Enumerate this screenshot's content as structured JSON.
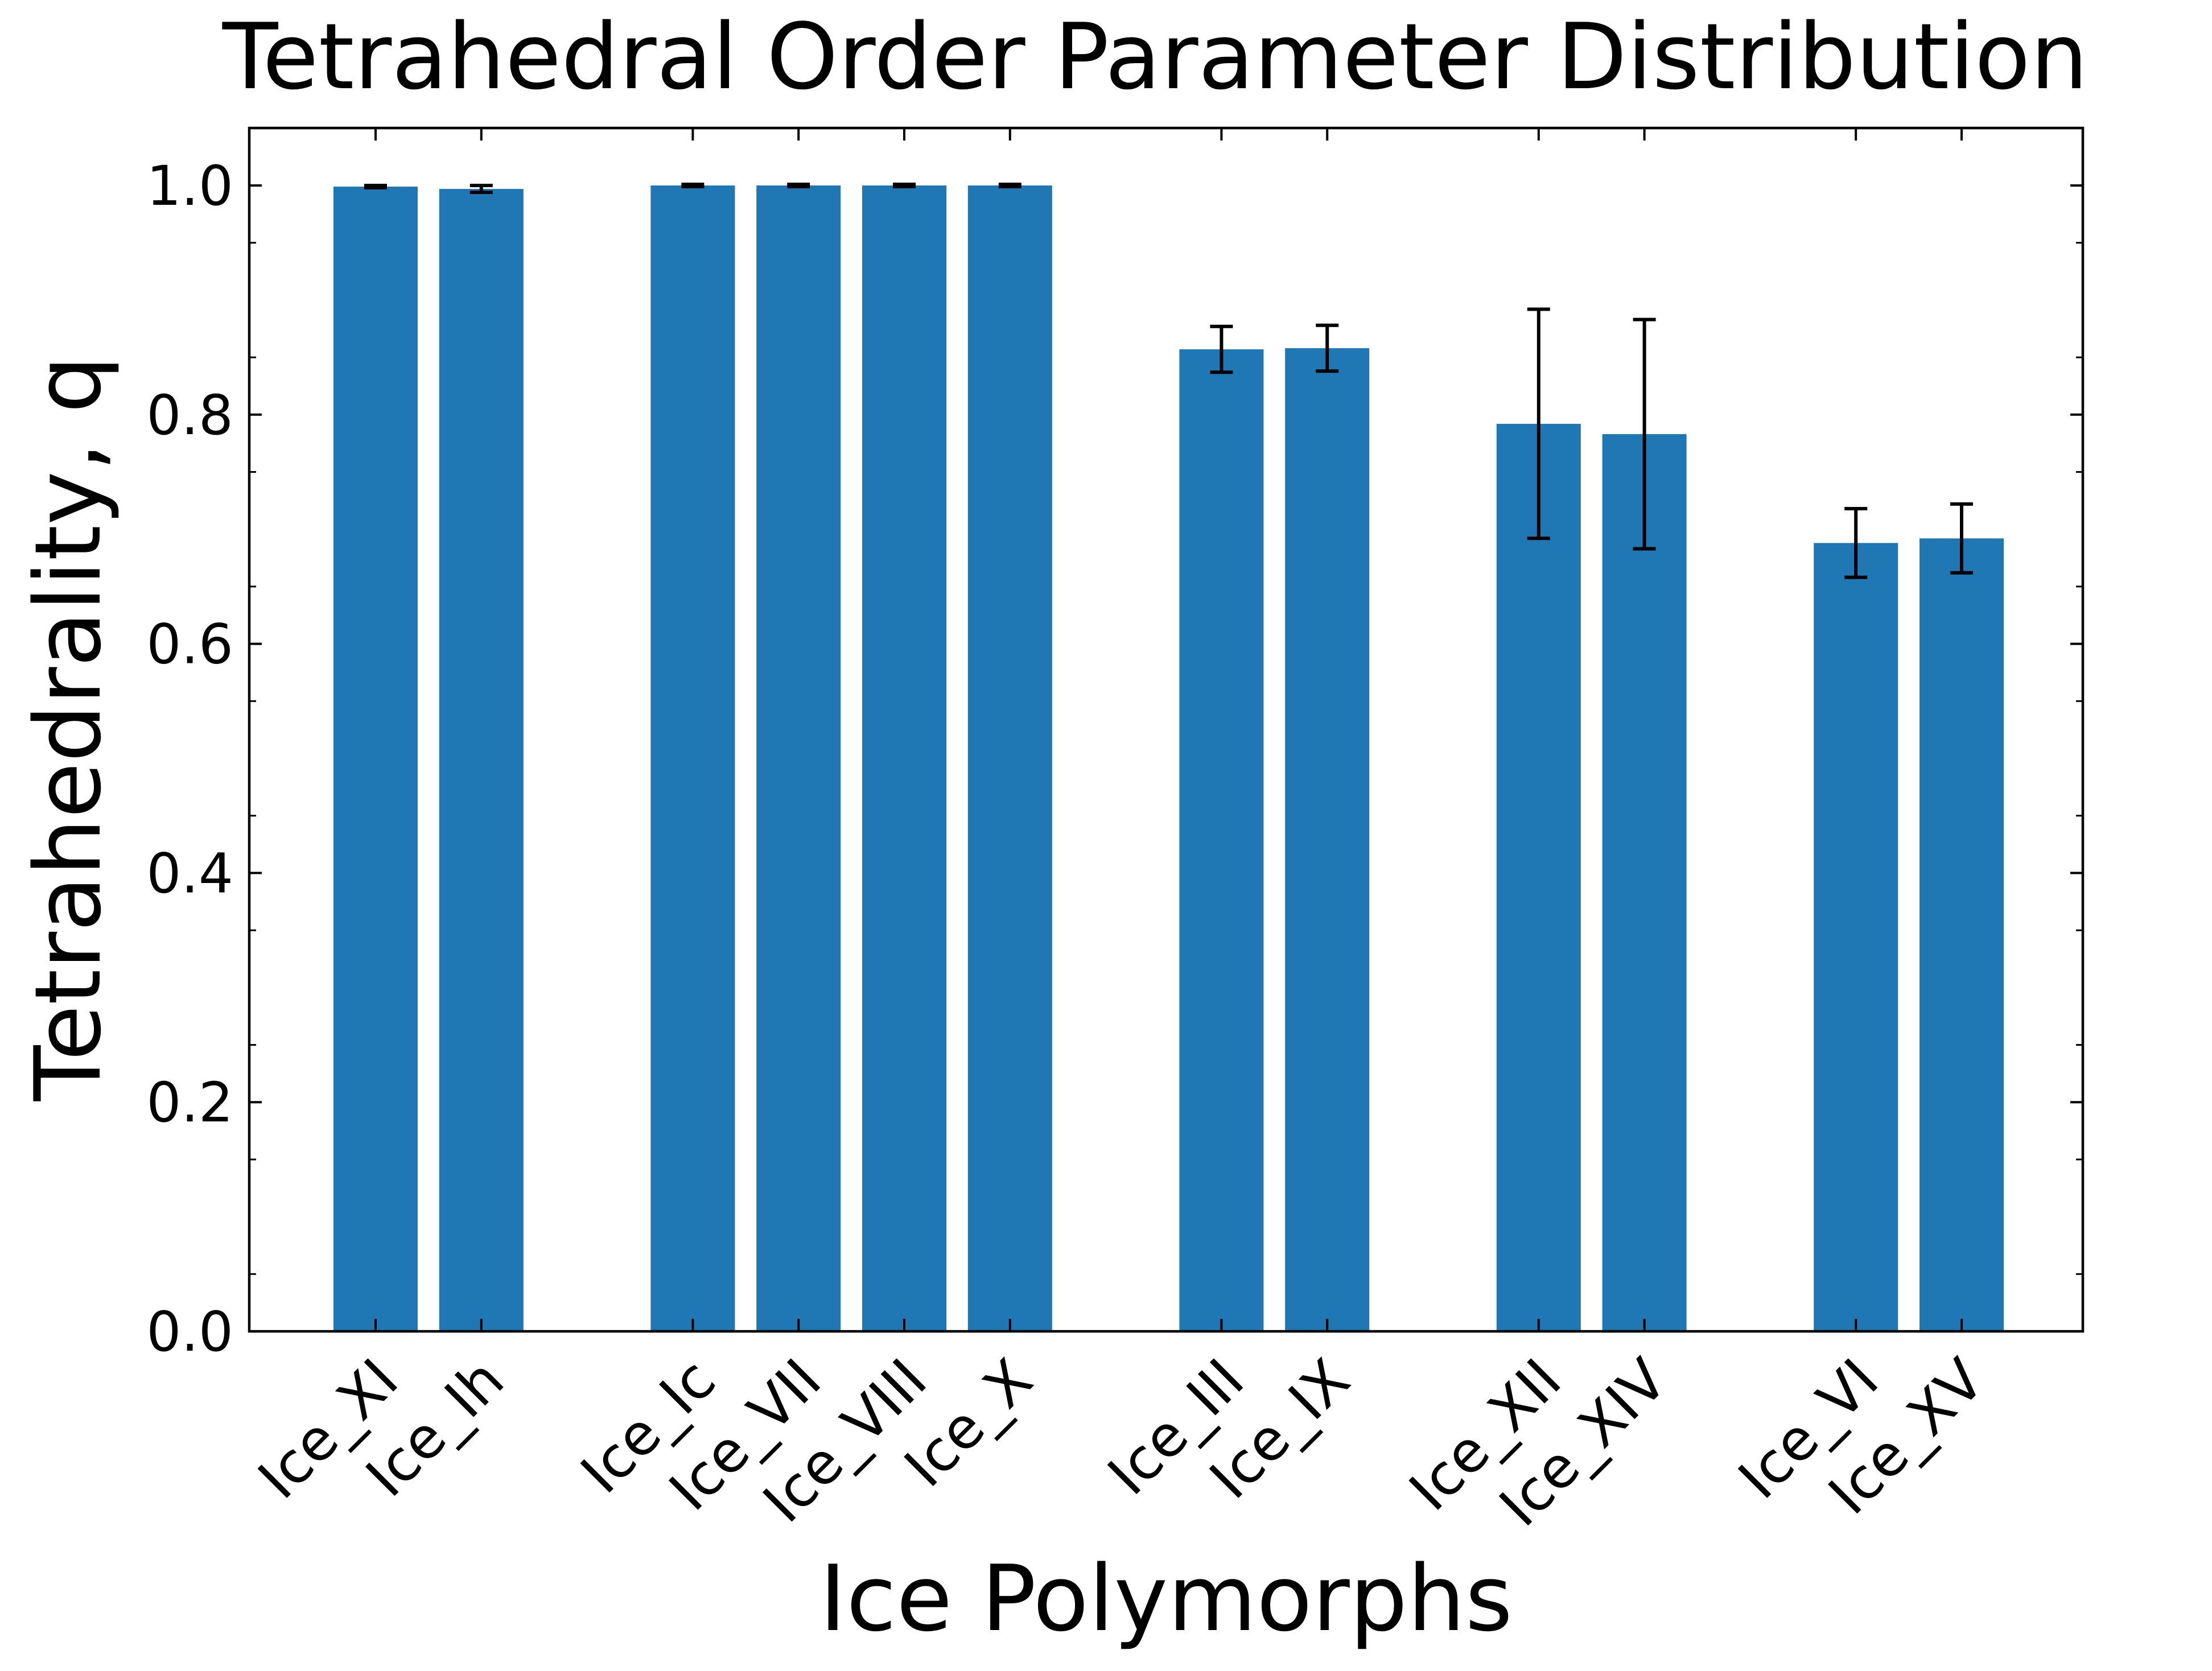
{
  "chart_data": {
    "type": "bar",
    "title": "Tetrahedral Order Parameter Distribution",
    "xlabel": "Ice Polymorphs",
    "ylabel": "Tetrahedrality, q",
    "ylim": [
      0,
      1.05
    ],
    "yticks": [
      "0.0",
      "0.2",
      "0.4",
      "0.6",
      "0.8",
      "1.0"
    ],
    "grid": false,
    "legend": "none",
    "bar_color": "#1f77b4",
    "errorbar_color": "#000000",
    "bars": [
      {
        "label": "Ice_XI",
        "slot": 0,
        "value": 0.999,
        "err": 0.001
      },
      {
        "label": "Ice_Ih",
        "slot": 1,
        "value": 0.997,
        "err": 0.003
      },
      {
        "label": "Ice_Ic",
        "slot": 3,
        "value": 1.0,
        "err": 0.001
      },
      {
        "label": "Ice_VII",
        "slot": 4,
        "value": 1.0,
        "err": 0.001
      },
      {
        "label": "Ice_VIII",
        "slot": 5,
        "value": 1.0,
        "err": 0.001
      },
      {
        "label": "Ice_X",
        "slot": 6,
        "value": 1.0,
        "err": 0.001
      },
      {
        "label": "Ice_III",
        "slot": 8,
        "value": 0.857,
        "err": 0.02
      },
      {
        "label": "Ice_IX",
        "slot": 9,
        "value": 0.858,
        "err": 0.02
      },
      {
        "label": "Ice_XII",
        "slot": 11,
        "value": 0.792,
        "err": 0.1
      },
      {
        "label": "Ice_XIV",
        "slot": 12,
        "value": 0.783,
        "err": 0.1
      },
      {
        "label": "Ice_VI",
        "slot": 14,
        "value": 0.688,
        "err": 0.03
      },
      {
        "label": "Ice_XV",
        "slot": 15,
        "value": 0.692,
        "err": 0.03
      }
    ]
  }
}
